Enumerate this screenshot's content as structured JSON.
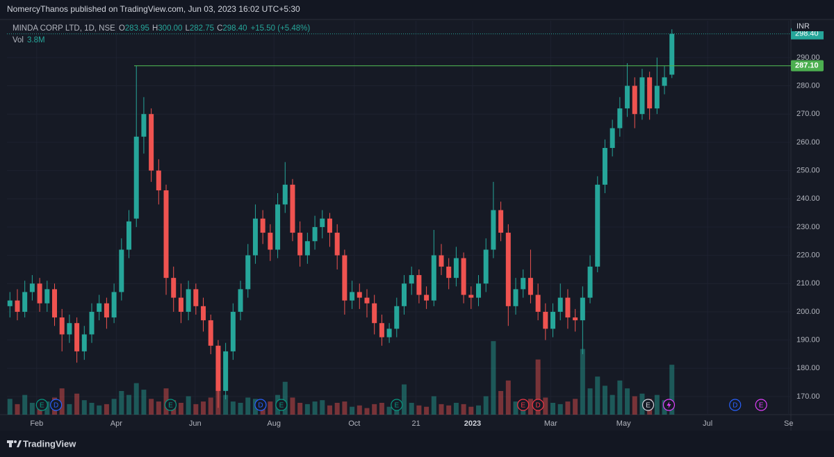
{
  "header": {
    "text": "NomercyThanos published on TradingView.com, Jun 03, 2023 16:02 UTC+5:30"
  },
  "footer": {
    "brand": "TradingView"
  },
  "chart_data": {
    "type": "candlestick",
    "symbol": "MINDA CORP LTD, 1D, NSE",
    "ohlc_letters": [
      "O",
      "H",
      "L",
      "C"
    ],
    "last_labels": {
      "open": "283.95",
      "high": "300.00",
      "low": "282.75",
      "close": "298.40"
    },
    "change": "+15.50 (+5.48%)",
    "volume_title": "Vol",
    "last_volume_label": "3.8M",
    "currency": "INR",
    "up_color": "#26a69a",
    "down_color": "#ef5350",
    "series": [
      {
        "name": "MINDA CORP LTD",
        "open": [
          202,
          204,
          200,
          207,
          210,
          203,
          208,
          198,
          192,
          196,
          186,
          192,
          200,
          203,
          198,
          207,
          222,
          233,
          262,
          270,
          250,
          243,
          212,
          205,
          200,
          208,
          202,
          197,
          188,
          172,
          186,
          200,
          208,
          220,
          233,
          228,
          222,
          238,
          245,
          228,
          220,
          225,
          230,
          233,
          228,
          220,
          204,
          207,
          205,
          203,
          196,
          191,
          194,
          202,
          210,
          213,
          206,
          204,
          220,
          216,
          212,
          219,
          206,
          205,
          210,
          222,
          236,
          228,
          202,
          208,
          212,
          206,
          200,
          194,
          200,
          205,
          198,
          197,
          205,
          216,
          245,
          258,
          265,
          272,
          280,
          270,
          283,
          272,
          280,
          283.95
        ],
        "high": [
          207,
          208,
          211,
          213,
          212,
          211,
          210,
          201,
          199,
          198,
          195,
          203,
          206,
          205,
          210,
          226,
          236,
          287.1,
          276,
          272,
          254,
          245,
          216,
          210,
          211,
          210,
          205,
          199,
          190,
          189,
          203,
          211,
          224,
          238,
          236,
          231,
          242,
          253,
          247,
          232,
          228,
          234,
          236,
          235,
          231,
          222,
          211,
          210,
          208,
          206,
          199,
          196,
          205,
          213,
          216,
          215,
          209,
          229,
          224,
          219,
          223,
          221,
          209,
          213,
          226,
          246,
          239,
          231,
          212,
          215,
          222,
          210,
          203,
          203,
          210,
          208,
          201,
          209,
          220,
          248,
          261,
          268,
          276,
          288,
          283,
          286,
          285,
          290,
          287,
          300
        ],
        "low": [
          198,
          197,
          198,
          204,
          200,
          200,
          195,
          186,
          189,
          182,
          183,
          189,
          197,
          194,
          196,
          204,
          219,
          230,
          256,
          246,
          238,
          206,
          200,
          196,
          197,
          199,
          193,
          185,
          166,
          169,
          183,
          197,
          205,
          217,
          224,
          218,
          219,
          235,
          225,
          216,
          217,
          222,
          226,
          223,
          215,
          199,
          201,
          201,
          198,
          192,
          188,
          189,
          191,
          199,
          206,
          203,
          201,
          202,
          213,
          208,
          209,
          203,
          201,
          202,
          207,
          219,
          225,
          195,
          199,
          205,
          203,
          197,
          190,
          191,
          197,
          194,
          193,
          185,
          203,
          214,
          242,
          255,
          262,
          269,
          265,
          268,
          268,
          270,
          277,
          282.75
        ],
        "close": [
          204,
          200,
          207,
          210,
          203,
          208,
          198,
          192,
          196,
          186,
          192,
          200,
          203,
          198,
          207,
          222,
          232,
          262,
          270,
          250,
          243,
          212,
          205,
          200,
          208,
          202,
          197,
          188,
          172,
          186,
          200,
          208,
          220,
          233,
          228,
          222,
          238,
          245,
          228,
          220,
          225,
          230,
          233,
          228,
          220,
          204,
          207,
          205,
          203,
          196,
          191,
          194,
          202,
          210,
          213,
          206,
          204,
          220,
          216,
          212,
          219,
          206,
          205,
          210,
          222,
          236,
          228,
          202,
          208,
          212,
          206,
          200,
          194,
          200,
          205,
          198,
          197,
          205,
          216,
          245,
          258,
          265,
          272,
          280,
          270,
          283,
          272,
          280,
          283,
          298.4
        ],
        "volume": [
          1.2,
          0.8,
          1.5,
          0.9,
          0.7,
          1.0,
          1.3,
          2.0,
          0.8,
          1.6,
          1.1,
          0.9,
          0.7,
          0.8,
          1.2,
          1.8,
          1.5,
          2.4,
          1.9,
          1.2,
          1.0,
          2.0,
          1.1,
          0.9,
          1.4,
          0.8,
          1.0,
          1.3,
          2.2,
          1.5,
          1.0,
          0.9,
          1.3,
          1.2,
          0.8,
          1.0,
          1.5,
          2.5,
          1.3,
          0.9,
          0.8,
          1.0,
          1.1,
          0.7,
          0.9,
          1.0,
          0.6,
          0.7,
          0.5,
          0.8,
          0.9,
          0.6,
          1.0,
          2.3,
          0.9,
          0.7,
          0.6,
          1.4,
          0.8,
          0.7,
          0.9,
          0.8,
          0.6,
          0.7,
          1.4,
          5.6,
          1.8,
          2.6,
          1.0,
          1.1,
          1.2,
          4.2,
          1.3,
          0.9,
          0.8,
          1.0,
          1.2,
          5.0,
          2.0,
          2.9,
          2.2,
          1.5,
          2.6,
          2.0,
          1.4,
          1.6,
          1.2,
          1.5,
          1.1,
          3.8
        ],
        "axis_volume": "y2"
      }
    ],
    "xlim": [
      -0.4,
      105
    ],
    "xticks": [
      {
        "value": 3.6,
        "label": "Feb"
      },
      {
        "value": 14.3,
        "label": "Apr"
      },
      {
        "value": 24.9,
        "label": "Jun"
      },
      {
        "value": 35.5,
        "label": "Aug"
      },
      {
        "value": 46.3,
        "label": "Oct"
      },
      {
        "value": 54.6,
        "label": "21"
      },
      {
        "value": 62.2,
        "label": "2023"
      },
      {
        "value": 72.7,
        "label": "Mar"
      },
      {
        "value": 82.5,
        "label": "May"
      },
      {
        "value": 93.8,
        "label": "Jul"
      },
      {
        "value": 104.7,
        "label": "Se"
      }
    ],
    "ylim": [
      163.6,
      303.0
    ],
    "yticks": [
      {
        "value": 170,
        "label": "170.00"
      },
      {
        "value": 180,
        "label": "180.00"
      },
      {
        "value": 190,
        "label": "190.00"
      },
      {
        "value": 200,
        "label": "200.00"
      },
      {
        "value": 210,
        "label": "210.00"
      },
      {
        "value": 220,
        "label": "220.00"
      },
      {
        "value": 230,
        "label": "230.00"
      },
      {
        "value": 240,
        "label": "240.00"
      },
      {
        "value": 250,
        "label": "250.00"
      },
      {
        "value": 260,
        "label": "260.00"
      },
      {
        "value": 270,
        "label": "270.00"
      },
      {
        "value": 280,
        "label": "280.00"
      },
      {
        "value": 290,
        "label": "290.00"
      }
    ],
    "y2lim": [
      0,
      30
    ],
    "grid": true,
    "hline": {
      "value": 287.1,
      "label": "287.10",
      "start": 16.7,
      "color": "#4caf50"
    },
    "events": [
      {
        "x": 4.3,
        "label": "E",
        "color": "#089981"
      },
      {
        "x": 6.2,
        "label": "D",
        "color": "#2962ff"
      },
      {
        "x": 21.6,
        "label": "E",
        "color": "#089981"
      },
      {
        "x": 33.7,
        "label": "D",
        "color": "#2962ff"
      },
      {
        "x": 36.5,
        "label": "E",
        "color": "#089981"
      },
      {
        "x": 52,
        "label": "E",
        "color": "#089981"
      },
      {
        "x": 69,
        "label": "E",
        "color": "#f23645"
      },
      {
        "x": 71,
        "label": "D",
        "color": "#f23645"
      },
      {
        "x": 85.8,
        "label": "E",
        "color": "#d1d4dc"
      },
      {
        "x": 88.6,
        "icon": "lightning",
        "color": "#e040fb"
      },
      {
        "x": 97.5,
        "label": "D",
        "color": "#2962ff"
      },
      {
        "x": 101,
        "label": "E",
        "color": "#e040fb"
      }
    ]
  }
}
